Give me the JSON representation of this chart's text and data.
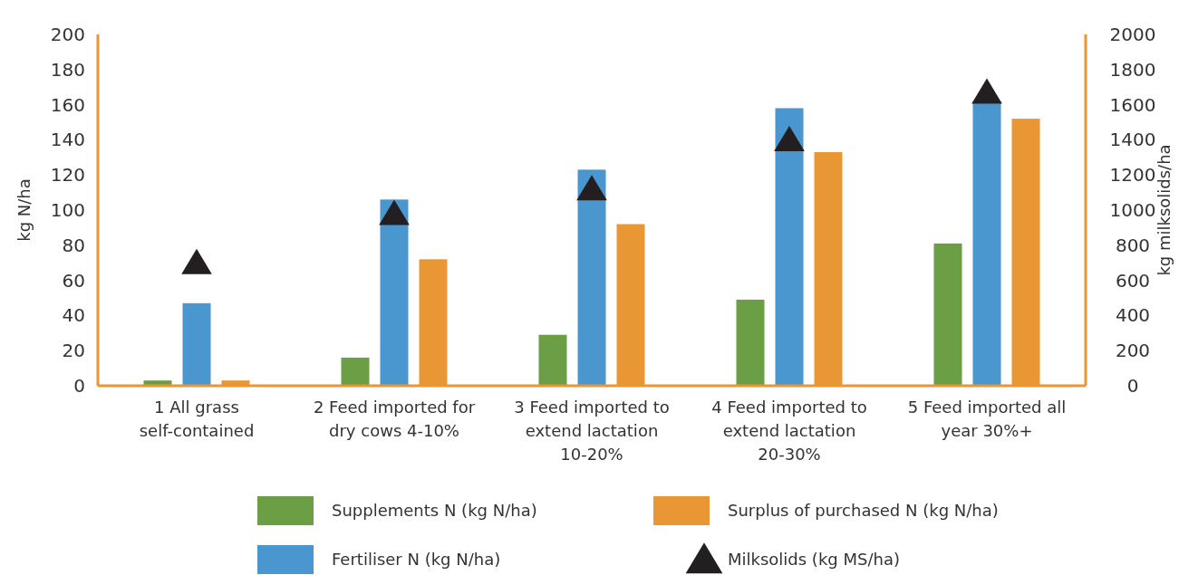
{
  "chart_data": {
    "type": "bar",
    "ylabel": "kg N/ha",
    "y2label": "kg milksolids/ha",
    "categories": [
      "1 All grass self-contained",
      "2 Feed imported for dry cows 4-10%",
      "3 Feed imported to extend lactation 10-20%",
      "4 Feed imported to extend lactation 20-30%",
      "5 Feed imported all year 30%+"
    ],
    "series": [
      {
        "name": "Supplements N (kg N/ha)",
        "color": "#6b9e45",
        "values": [
          3,
          16,
          29,
          49,
          81
        ]
      },
      {
        "name": "Fertiliser N (kg N/ha)",
        "color": "#4a96cf",
        "values": [
          47,
          106,
          123,
          158,
          162
        ]
      },
      {
        "name": "Surplus of purchased N (kg N/ha)",
        "color": "#e99634",
        "values": [
          3,
          72,
          92,
          133,
          152
        ]
      },
      {
        "name": "Milksolids (kg MS/ha)",
        "type": "scatter",
        "axis": "y2",
        "marker": "triangle",
        "color": "#231f20",
        "values": [
          700,
          980,
          1120,
          1400,
          1670
        ]
      }
    ],
    "ylim": [
      0,
      200
    ],
    "yticks": [
      0,
      20,
      40,
      60,
      80,
      100,
      120,
      140,
      160,
      180,
      200
    ],
    "y2lim": [
      0,
      2000
    ],
    "y2ticks": [
      0,
      200,
      400,
      600,
      800,
      1000,
      1200,
      1400,
      1600,
      1800,
      2000
    ],
    "grid": false,
    "legend": "bottom"
  }
}
